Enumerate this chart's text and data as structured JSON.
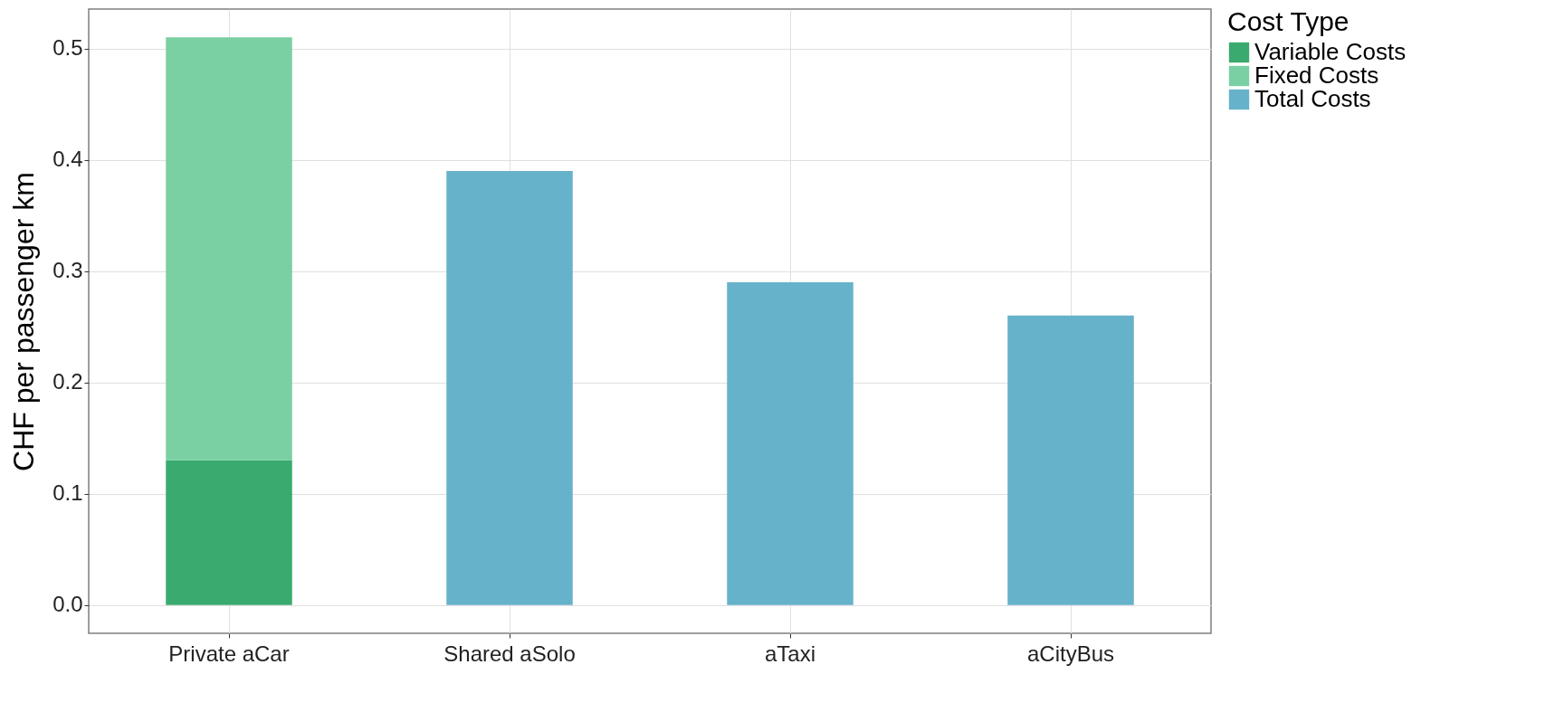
{
  "chart_data": {
    "type": "bar",
    "stacked": true,
    "ylabel": "CHF per passenger km",
    "legend_title": "Cost Type",
    "categories": [
      "Private aCar",
      "Shared aSolo",
      "aTaxi",
      "aCityBus"
    ],
    "series": [
      {
        "name": "Variable Costs",
        "color": "#3aaa6e",
        "values": [
          0.13,
          null,
          null,
          null
        ]
      },
      {
        "name": "Fixed Costs",
        "color": "#7ad0a2",
        "values": [
          0.38,
          null,
          null,
          null
        ]
      },
      {
        "name": "Total Costs",
        "color": "#66b2ca",
        "values": [
          null,
          0.39,
          0.29,
          0.26
        ]
      }
    ],
    "ylim": [
      -0.0255,
      0.5355
    ],
    "yticks": [
      {
        "value": 0,
        "label": "0.0"
      },
      {
        "value": 0.1,
        "label": "0.1"
      },
      {
        "value": 0.2,
        "label": "0.2"
      },
      {
        "value": 0.3,
        "label": "0.3"
      },
      {
        "value": 0.4,
        "label": "0.4"
      },
      {
        "value": 0.5,
        "label": "0.5"
      }
    ],
    "grid": true,
    "legend": "right"
  }
}
